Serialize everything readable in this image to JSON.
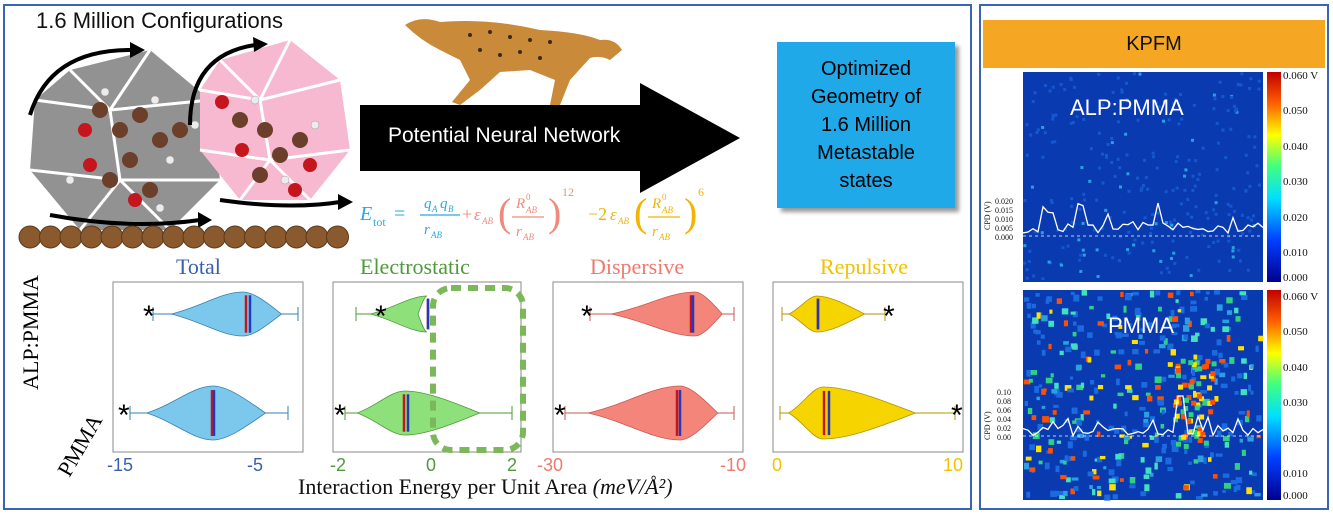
{
  "left": {
    "configurations_title": "1.6 Million Configurations",
    "network_label": "Potential Neural Network",
    "optimized_lines": [
      "Optimized",
      "Geometry of",
      "1.6 Million",
      "Metastable",
      "states"
    ]
  },
  "violin": {
    "panel_titles": [
      "Total",
      "Electrostatic",
      "Dispersive",
      "Repulsive"
    ],
    "title_colors": [
      "#3a5fb0",
      "#4e9a3a",
      "#ef7a6e",
      "#f2c200"
    ],
    "row_labels": [
      "ALP:PMMA",
      "PMMA"
    ],
    "ticks": [
      [
        {
          "v": "-15"
        },
        {
          "v": "-5"
        }
      ],
      [
        {
          "v": "-2"
        },
        {
          "v": "0"
        },
        {
          "v": "2"
        }
      ],
      [
        {
          "v": "-30"
        },
        {
          "v": "-10"
        }
      ],
      [
        {
          "v": "0"
        },
        {
          "v": "10"
        }
      ]
    ],
    "xlabel_text": "Interaction Energy per Unit Area ",
    "xlabel_unit": "(meV/Å²)"
  },
  "kpfm": {
    "title": "KPFM",
    "top_label": "ALP:PMMA",
    "bottom_label": "PMMA",
    "colorbar_ticks_top": [
      "0.060 V",
      "0.050",
      "0.040",
      "0.030",
      "0.020",
      "0.010",
      "0.000"
    ],
    "colorbar_ticks_bottom": [
      "0.060 V",
      "0.050",
      "0.040",
      "0.030",
      "0.020",
      "0.010",
      "0.000"
    ],
    "cpd_axis_label": "CPD (V)",
    "cpd_ticks_top": [
      "0.020",
      "0.015",
      "0.010",
      "0.005",
      "0.000"
    ],
    "cpd_ticks_bottom": [
      "0.10",
      "0.08",
      "0.06",
      "0.04",
      "0.02",
      "0.00"
    ]
  }
}
